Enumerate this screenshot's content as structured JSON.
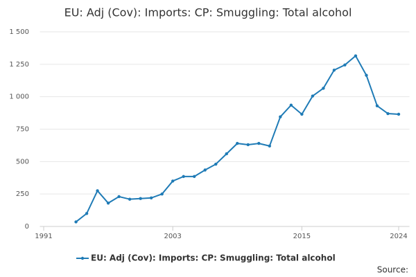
{
  "chart_data": {
    "type": "line",
    "title": "EU: Adj (Cov): Imports: CP: Smuggling: Total alcohol",
    "x": [
      1994,
      1995,
      1996,
      1997,
      1998,
      1999,
      2000,
      2001,
      2002,
      2003,
      2004,
      2005,
      2006,
      2007,
      2008,
      2009,
      2010,
      2011,
      2012,
      2013,
      2014,
      2015,
      2016,
      2017,
      2018,
      2019,
      2020,
      2021,
      2022,
      2023,
      2024
    ],
    "series": [
      {
        "name": "EU: Adj (Cov): Imports: CP: Smuggling: Total alcohol",
        "color": "#1f7bb6",
        "values": [
          35,
          100,
          275,
          180,
          230,
          210,
          215,
          220,
          250,
          350,
          385,
          385,
          435,
          480,
          560,
          640,
          630,
          640,
          620,
          845,
          935,
          865,
          1005,
          1065,
          1205,
          1245,
          1315,
          1165,
          930,
          870,
          865
        ]
      }
    ],
    "xlim": [
      1990,
      2025
    ],
    "xticks": [
      1991,
      2003,
      2015,
      2024
    ],
    "ylim": [
      0,
      1500
    ],
    "yticks": [
      0,
      250,
      500,
      750,
      {
        "value": 1000,
        "label": "1 000"
      },
      {
        "value": 1250,
        "label": "1 250"
      },
      {
        "value": 1500,
        "label": "1 500"
      }
    ],
    "grid": true,
    "legend": "bottom",
    "source": "Source:"
  }
}
